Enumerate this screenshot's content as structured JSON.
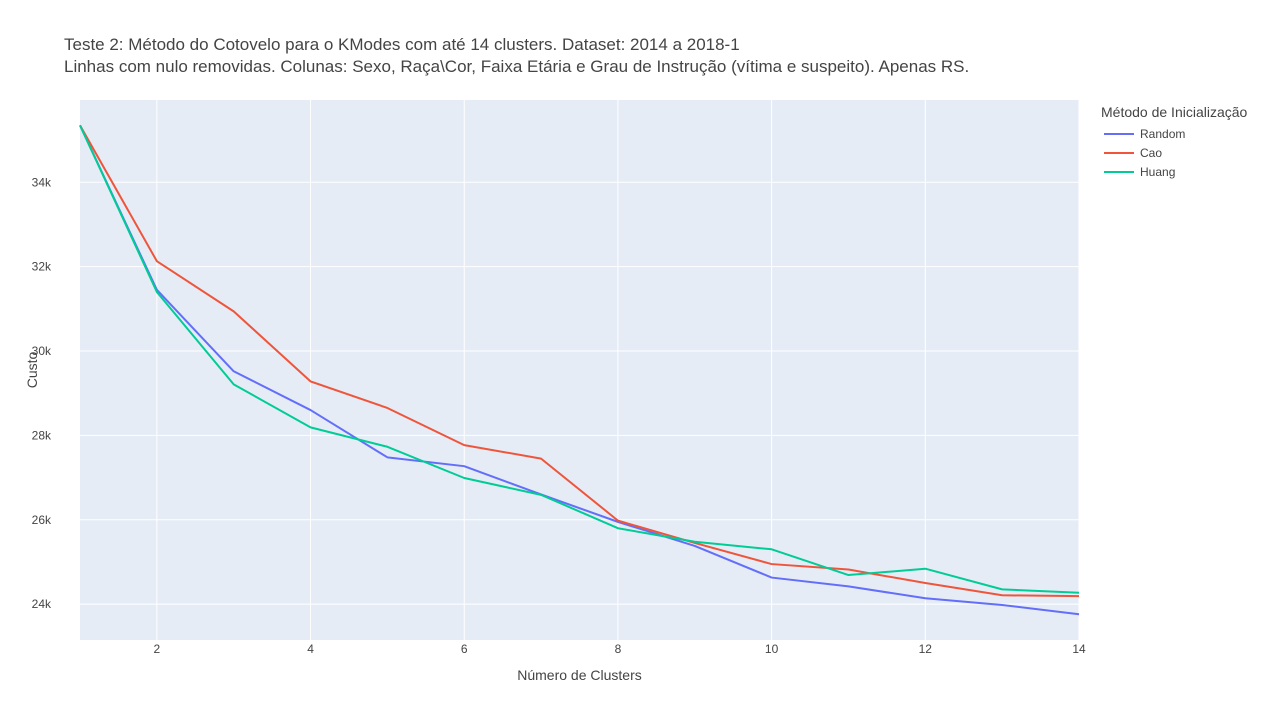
{
  "title": {
    "line1": "Teste 2: Método do Cotovelo para o KModes com até 14 clusters. Dataset: 2014 a 2018-1",
    "line2": "Linhas com nulo removidas. Colunas: Sexo, Raça\\Cor, Faixa Etária e Grau de Instrução (vítima e suspeito). Apenas RS."
  },
  "legend": {
    "title": "Método de Inicialização"
  },
  "colors": {
    "plot_bg": "#E5ECF6",
    "grid": "#FFFFFF",
    "Random": "#636EFA",
    "Cao": "#EF553B",
    "Huang": "#00CC96"
  },
  "chart_data": {
    "type": "line",
    "xlabel": "Número de Clusters",
    "ylabel": "Custo",
    "xlim": [
      1,
      14
    ],
    "ylim": [
      23150,
      35950
    ],
    "x_ticks": [
      2,
      4,
      6,
      8,
      10,
      12,
      14
    ],
    "y_ticks": [
      24000,
      26000,
      28000,
      30000,
      32000,
      34000
    ],
    "y_tick_labels": [
      "24k",
      "26k",
      "28k",
      "30k",
      "32k",
      "34k"
    ],
    "grid": true,
    "legend_position": "top-right, outside plot",
    "x": [
      1,
      2,
      3,
      4,
      5,
      6,
      7,
      8,
      9,
      10,
      11,
      12,
      13,
      14
    ],
    "series": [
      {
        "name": "Random",
        "values": [
          35350,
          31450,
          29520,
          28600,
          27480,
          27270,
          26600,
          25950,
          25380,
          24630,
          24420,
          24140,
          23980,
          23760
        ]
      },
      {
        "name": "Cao",
        "values": [
          35350,
          32130,
          30940,
          29280,
          28650,
          27770,
          27450,
          25980,
          25450,
          24950,
          24820,
          24500,
          24210,
          24190
        ]
      },
      {
        "name": "Huang",
        "values": [
          35350,
          31400,
          29210,
          28190,
          27730,
          26990,
          26590,
          25800,
          25480,
          25300,
          24690,
          24840,
          24350,
          24270
        ]
      }
    ]
  }
}
